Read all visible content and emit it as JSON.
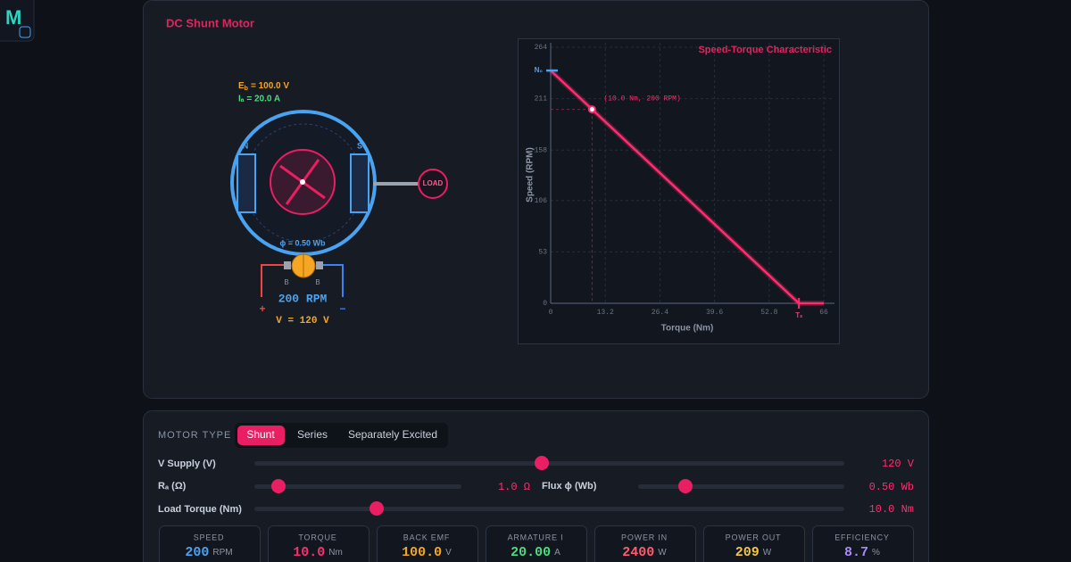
{
  "sidebar": {
    "logo": "M"
  },
  "motor_panel": {
    "title": "DC Shunt Motor",
    "back_emf": {
      "symbol": "E",
      "subscript": "b",
      "value": "= 100.0 V"
    },
    "armature_current": "Iₐ = 20.0 A",
    "north_pole": "N",
    "south_pole": "S",
    "load": "LOAD",
    "flux": "ϕ = 0.50 Wb",
    "brushes": [
      "B",
      "B"
    ],
    "speed": "200 RPM",
    "plus": "+",
    "minus": "−",
    "voltage": "V = 120 V"
  },
  "chart_data": {
    "type": "line",
    "title": "Speed-Torque Characteristic",
    "x_label": "Torque (Nm)",
    "y_label": "Speed (RPM)",
    "x": [
      0,
      10,
      60,
      66
    ],
    "series": [
      {
        "color": "#ff2d6f",
        "values": [
          240,
          200,
          0,
          0
        ]
      }
    ],
    "xlim": [
      0,
      66
    ],
    "ylim": [
      0,
      264
    ],
    "xticks": [
      0,
      13.2,
      26.4,
      39.6,
      52.8,
      66
    ],
    "yticks": [
      0,
      53,
      106,
      158,
      211,
      264
    ],
    "grid": true,
    "annotations": {
      "operating_point": "(10.0 Nm, 200 RPM)",
      "no_load_speed": "N₀",
      "stall_torque": "Tₛ"
    }
  },
  "controls": {
    "motor_type_label": "MOTOR TYPE",
    "motor_types": [
      "Shunt",
      "Series",
      "Separately Excited"
    ],
    "sliders": [
      {
        "label": "V Supply (V)",
        "readout": "120 V"
      },
      {
        "label": "Rₐ (Ω)",
        "readout": "1.0 Ω"
      },
      {
        "label": "Flux ϕ (Wb)",
        "readout": "0.50 Wb"
      },
      {
        "label": "Load Torque (Nm)",
        "readout": "10.0 Nm"
      }
    ]
  },
  "stats": [
    {
      "label": "SPEED",
      "value": "200",
      "unit": "RPM",
      "color": "#4aa3f0"
    },
    {
      "label": "TORQUE",
      "value": "10.0",
      "unit": "Nm",
      "color": "#ff2d6f"
    },
    {
      "label": "BACK EMF",
      "value": "100.0",
      "unit": "V",
      "color": "#f5a623"
    },
    {
      "label": "ARMATURE I",
      "value": "20.00",
      "unit": "A",
      "color": "#4ade80"
    },
    {
      "label": "POWER IN",
      "value": "2400",
      "unit": "W",
      "color": "#ff5a6e"
    },
    {
      "label": "POWER OUT",
      "value": "209",
      "unit": "W",
      "color": "#f5c542"
    },
    {
      "label": "EFFICIENCY",
      "value": "8.7",
      "unit": "%",
      "color": "#a78bfa"
    }
  ]
}
